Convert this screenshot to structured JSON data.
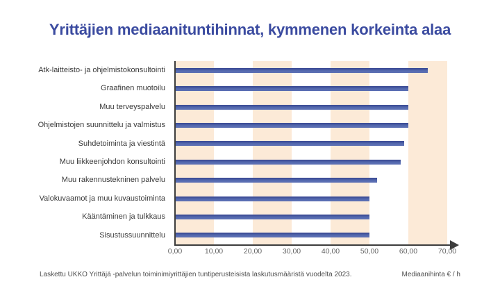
{
  "title": "Yrittäjien mediaanituntihinnat, kymmenen korkeinta alaa",
  "footer": {
    "source_note": "Laskettu UKKO Yrittäjä -palvelun toiminimiyrittäjien tuntiperusteisista laskutusmääristä vuodelta 2023.",
    "unit_label": "Mediaanihinta € / h"
  },
  "colors": {
    "title": "#3b4ba0",
    "bar_fill": "#5267ad",
    "bar_edge": "#3e4e98",
    "bar_light": "#5d70b5",
    "band": "#fcead7",
    "axis": "#3c3c3c",
    "tick_text": "#606060",
    "label_text": "#3a3a3a",
    "footer_text": "#4f4f4f"
  },
  "chart_data": {
    "type": "bar",
    "orientation": "horizontal",
    "title": "Yrittäjien mediaanituntihinnat, kymmenen korkeinta alaa",
    "categories": [
      "Atk-laitteisto- ja ohjelmistokonsultointi",
      "Graafinen muotoilu",
      "Muu terveyspalvelu",
      "Ohjelmistojen suunnittelu ja valmistus",
      "Suhdetoiminta ja viestintä",
      "Muu liikkeenjohdon konsultointi",
      "Muu rakennustekninen palvelu",
      "Valokuvaamot ja muu kuvaustoiminta",
      "Kääntäminen ja tulkkaus",
      "Sisustussuunnittelu"
    ],
    "values": [
      65,
      60,
      60,
      60,
      59,
      58,
      52,
      50,
      50,
      50
    ],
    "xlabel": "Mediaanihinta € / h",
    "ylabel": "",
    "xlim": [
      0,
      70
    ],
    "x_tick_values": [
      0,
      10,
      20,
      30,
      40,
      50,
      60,
      70
    ],
    "x_tick_labels": [
      "0,00",
      "10,00",
      "20,00",
      "30,00",
      "40,00",
      "50,00",
      "60,00",
      "70,00"
    ],
    "grid_bands": [
      [
        0,
        10
      ],
      [
        20,
        30
      ],
      [
        40,
        50
      ],
      [
        60,
        70
      ]
    ],
    "legend": "none",
    "bar_color": "#5267ad",
    "band_color": "#fcead7"
  }
}
